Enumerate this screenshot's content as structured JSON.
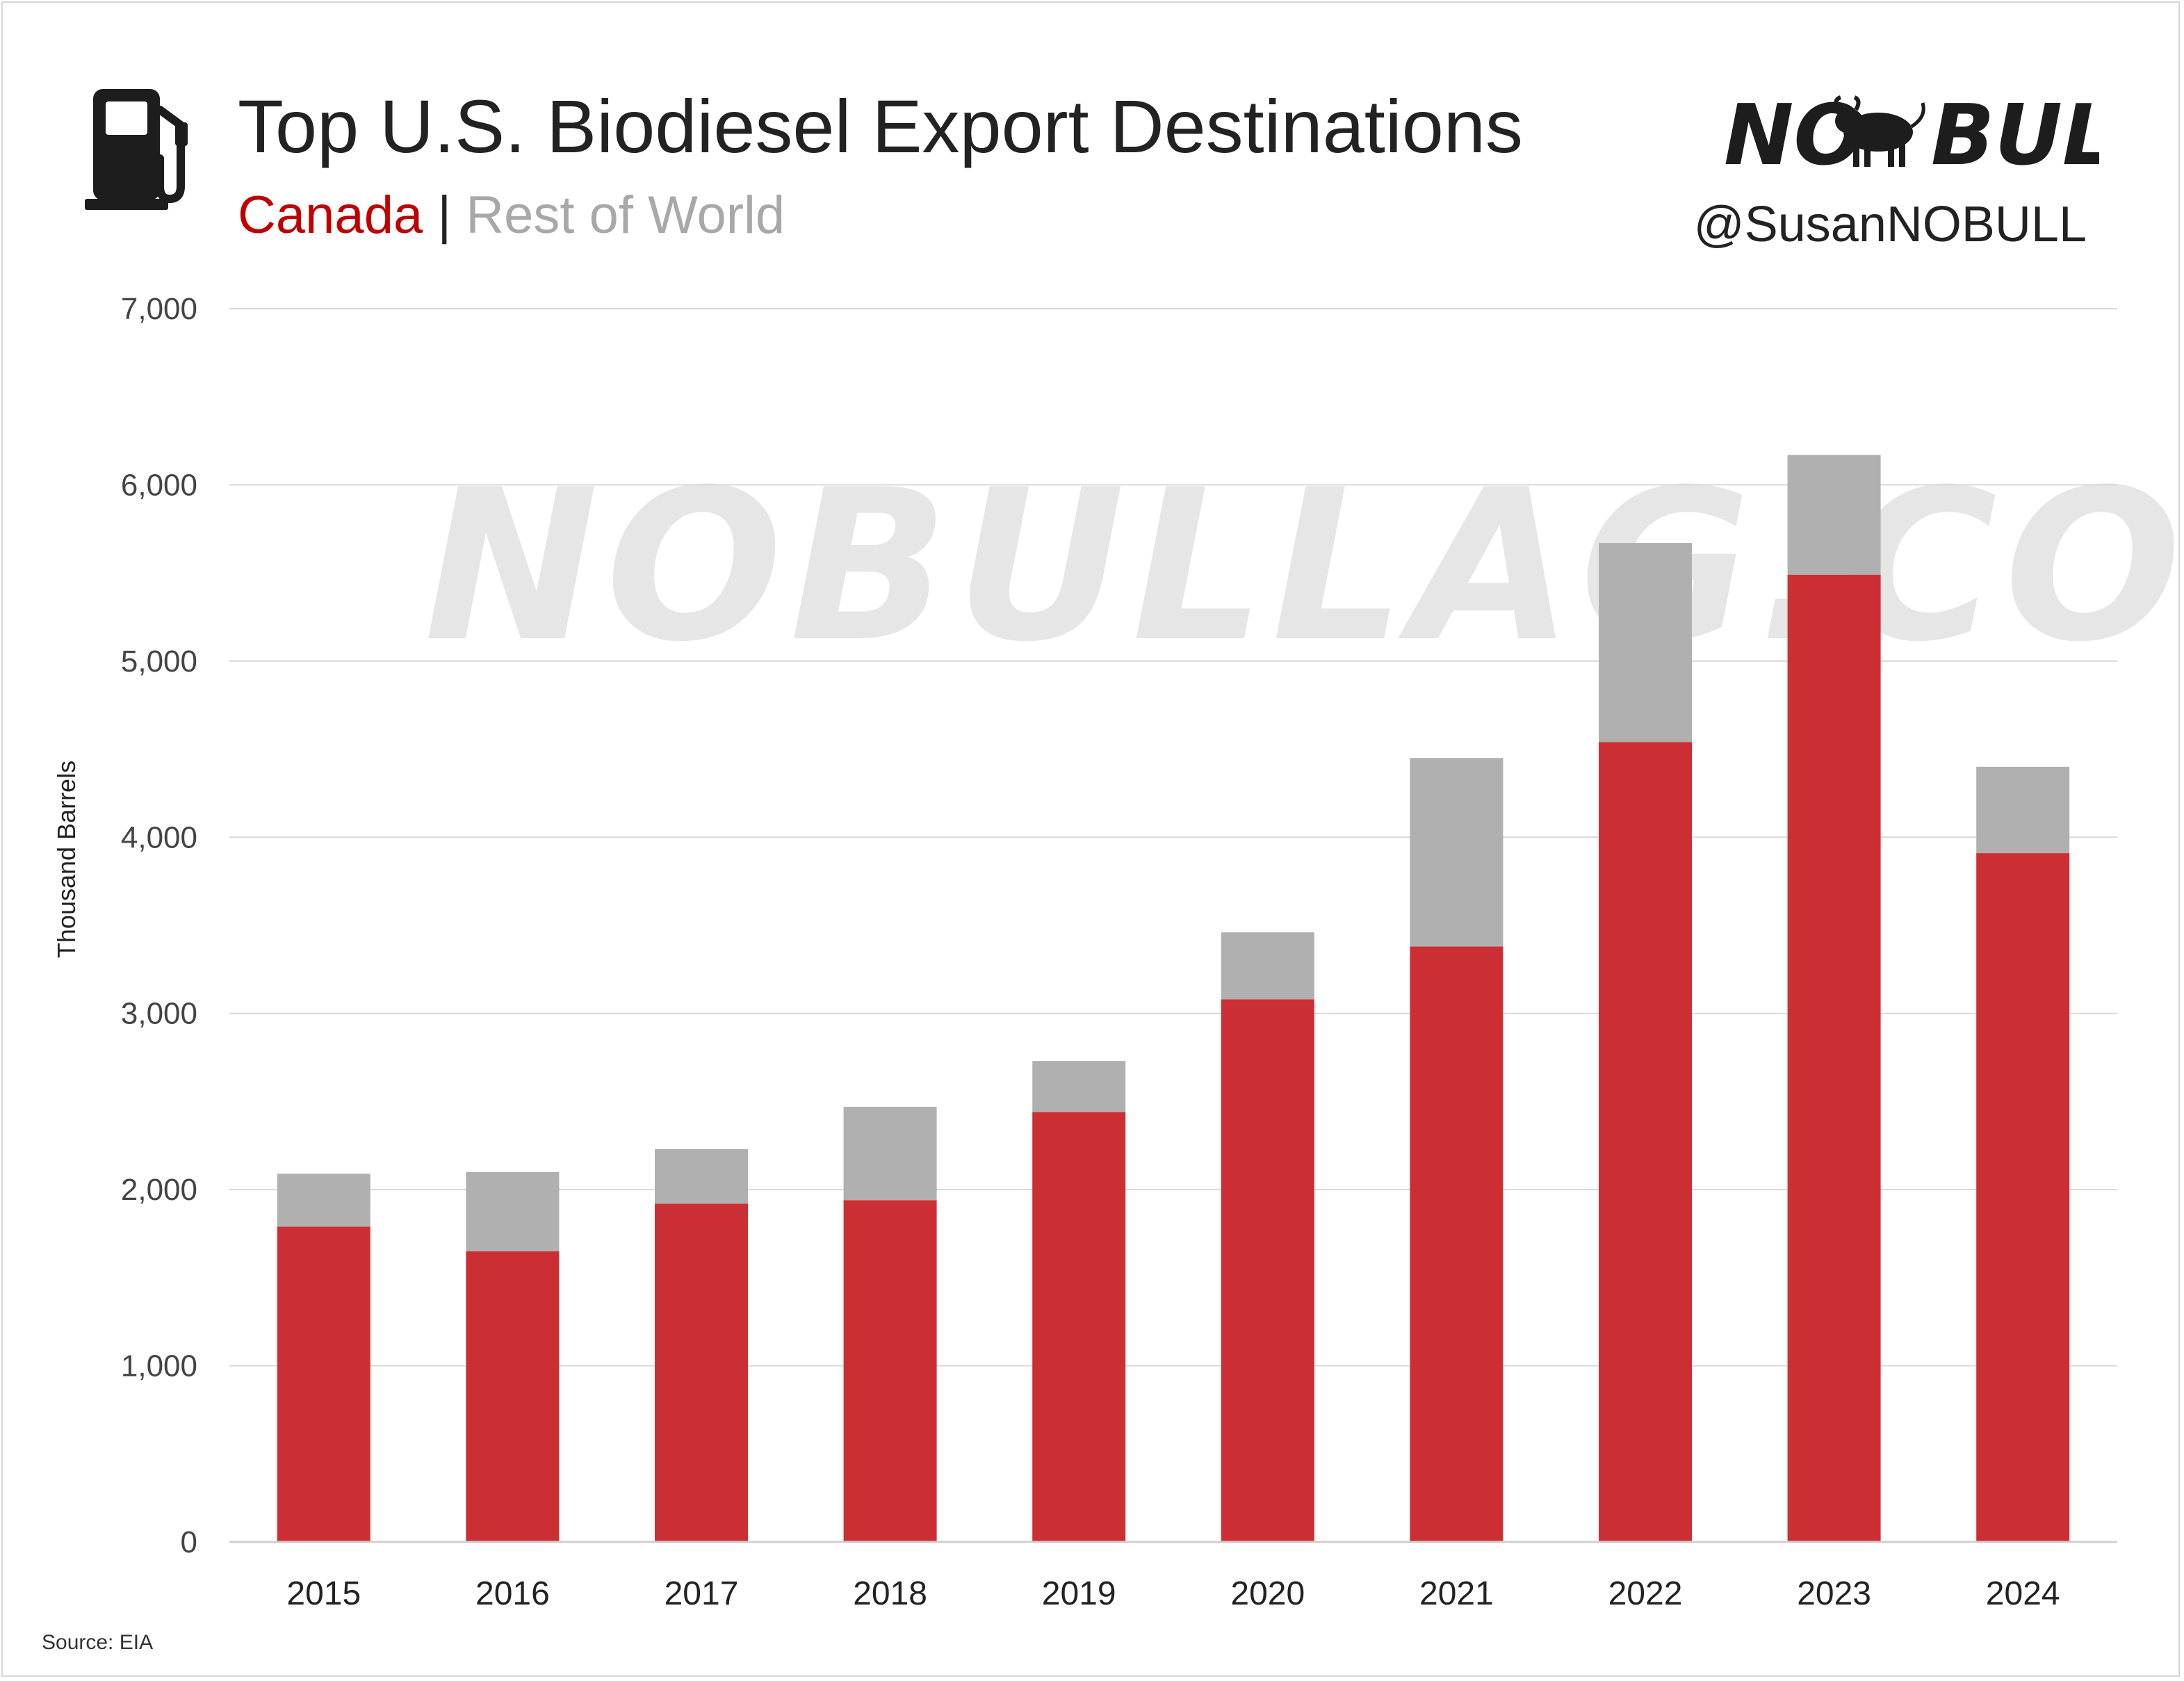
{
  "header": {
    "title": "Top U.S. Biodiesel Export Destinations",
    "subtitle_series_1": "Canada",
    "subtitle_separator": "|",
    "subtitle_series_2": "Rest of World",
    "icon": "fuel-pump-icon"
  },
  "branding": {
    "logo_text_left": "NO",
    "logo_text_right": "BULL",
    "handle": "@SusanNOBULL",
    "watermark": "NOBULLAG.COM"
  },
  "footer": {
    "source": "Source: EIA"
  },
  "colors": {
    "canada": "#cc2f33",
    "rest_of_world": "#b0b0b0",
    "subtitle_canada": "#c00000",
    "subtitle_rest": "#a8a8a8",
    "gridline": "#d9d9d9"
  },
  "chart_data": {
    "type": "bar",
    "stacked": true,
    "categories": [
      "2015",
      "2016",
      "2017",
      "2018",
      "2019",
      "2020",
      "2021",
      "2022",
      "2023",
      "2024"
    ],
    "series": [
      {
        "name": "Canada",
        "values": [
          1790,
          1650,
          1920,
          1940,
          2440,
          3080,
          3380,
          4540,
          5490,
          3910
        ]
      },
      {
        "name": "Rest of World",
        "values": [
          300,
          450,
          310,
          530,
          290,
          380,
          1070,
          1130,
          680,
          490
        ]
      }
    ],
    "ylabel": "Thousand Barrels",
    "xlabel": "",
    "ylim": [
      0,
      7000
    ],
    "yticks": [
      0,
      1000,
      2000,
      3000,
      4000,
      5000,
      6000,
      7000
    ],
    "ytick_labels": [
      "0",
      "1,000",
      "2,000",
      "3,000",
      "4,000",
      "5,000",
      "6,000",
      "7,000"
    ],
    "grid": true,
    "legend": "subtitle"
  }
}
